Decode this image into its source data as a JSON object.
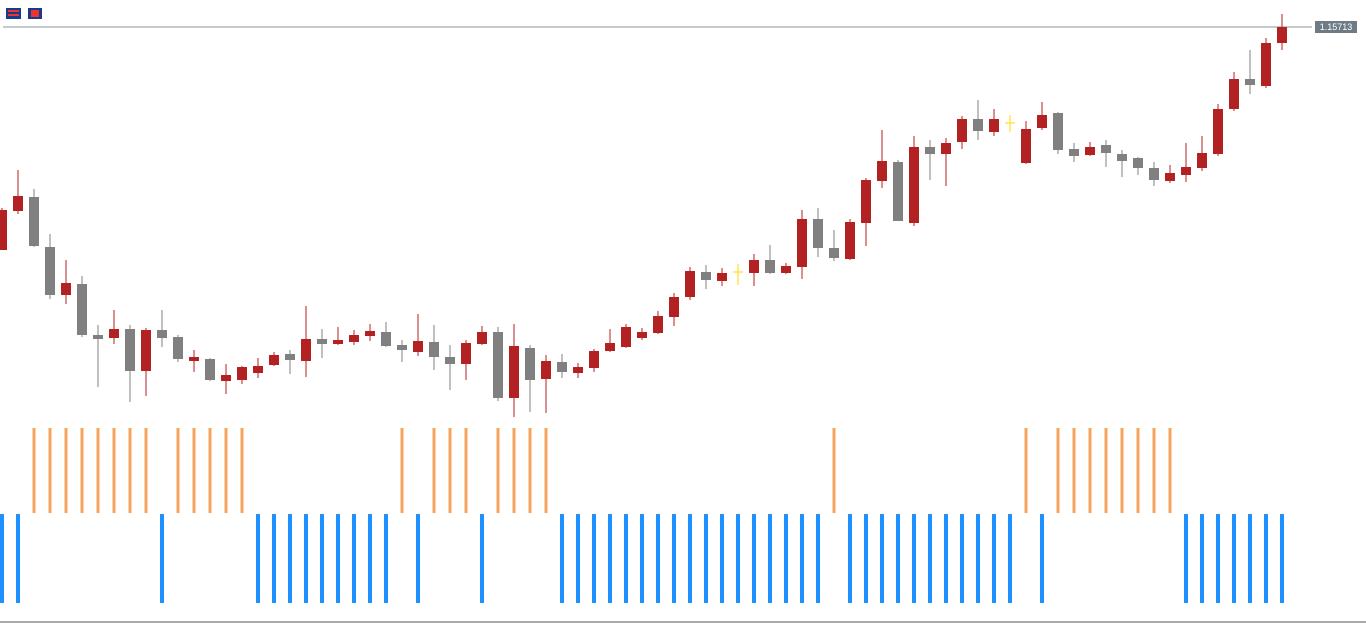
{
  "chart_data": {
    "type": "candlestick",
    "ylim": [
      1.1532,
      1.1574
    ],
    "up_color": "#b22222",
    "down_color": "#808080",
    "doji_color": "#ffd700",
    "last_price": 1.15713,
    "last_price_color": "#6e7b85",
    "open": [
      1.1549,
      1.15529,
      1.15543,
      1.15493,
      1.15445,
      1.15456,
      1.15405,
      1.15402,
      1.15411,
      1.15369,
      1.1541,
      1.15403,
      1.15379,
      1.15381,
      1.15359,
      1.1536,
      1.15367,
      1.15375,
      1.15386,
      1.15379,
      1.15401,
      1.15396,
      1.15398,
      1.15404,
      1.15408,
      1.15395,
      1.15388,
      1.15398,
      1.15383,
      1.15376,
      1.15396,
      1.15408,
      1.15342,
      1.15392,
      1.15361,
      1.15378,
      1.15367,
      1.15372,
      1.15389,
      1.15393,
      1.15402,
      1.15407,
      1.15423,
      1.15443,
      1.15468,
      1.15459,
      1.15468,
      1.15467,
      1.1548,
      1.15467,
      1.15473,
      1.15521,
      1.15492,
      1.15481,
      1.15517,
      1.15559,
      1.15578,
      1.15517,
      1.15593,
      1.15586,
      1.15598,
      1.15621,
      1.15608,
      1.15617,
      1.15577,
      1.15612,
      1.15627,
      1.15591,
      1.15585,
      1.15595,
      1.15586,
      1.15582,
      1.15572,
      1.15559,
      1.15565,
      1.15572,
      1.15586,
      1.15631,
      1.15661,
      1.15654,
      1.15697
    ],
    "high": [
      1.15532,
      1.1557,
      1.15551,
      1.15506,
      1.1548,
      1.15464,
      1.15415,
      1.1543,
      1.15415,
      1.15412,
      1.1543,
      1.15405,
      1.1539,
      1.15382,
      1.15376,
      1.15374,
      1.15382,
      1.15388,
      1.1539,
      1.15434,
      1.15411,
      1.15413,
      1.1541,
      1.15416,
      1.15418,
      1.154,
      1.15426,
      1.15415,
      1.15395,
      1.154,
      1.15414,
      1.15413,
      1.15416,
      1.15395,
      1.15385,
      1.15386,
      1.15377,
      1.15391,
      1.15411,
      1.15416,
      1.15412,
      1.15429,
      1.15447,
      1.15473,
      1.15475,
      1.15472,
      1.15476,
      1.15486,
      1.15495,
      1.15477,
      1.1553,
      1.15532,
      1.1551,
      1.15521,
      1.15562,
      1.1561,
      1.1558,
      1.15604,
      1.156,
      1.15602,
      1.15624,
      1.1564,
      1.15631,
      1.15625,
      1.15619,
      1.15638,
      1.15628,
      1.15597,
      1.15598,
      1.156,
      1.1559,
      1.15583,
      1.15578,
      1.15575,
      1.15597,
      1.15604,
      1.15636,
      1.15668,
      1.1569,
      1.15702,
      1.15726
    ],
    "low": [
      1.1549,
      1.15526,
      1.15493,
      1.15441,
      1.15436,
      1.15403,
      1.15353,
      1.15396,
      1.15338,
      1.15344,
      1.15393,
      1.15378,
      1.15368,
      1.15359,
      1.15346,
      1.15356,
      1.15362,
      1.15374,
      1.15366,
      1.15363,
      1.15382,
      1.15395,
      1.15395,
      1.15399,
      1.15393,
      1.15378,
      1.15384,
      1.1537,
      1.1535,
      1.1536,
      1.15395,
      1.15339,
      1.15323,
      1.15328,
      1.15327,
      1.15362,
      1.15362,
      1.15368,
      1.15388,
      1.15392,
      1.154,
      1.15406,
      1.15414,
      1.1544,
      1.15451,
      1.15454,
      1.15455,
      1.15454,
      1.15466,
      1.15466,
      1.15461,
      1.15483,
      1.15479,
      1.1548,
      1.15494,
      1.15552,
      1.15519,
      1.15514,
      1.1556,
      1.15554,
      1.15591,
      1.156,
      1.15604,
      1.15608,
      1.15576,
      1.1561,
      1.15586,
      1.15578,
      1.15584,
      1.15573,
      1.15563,
      1.15565,
      1.15554,
      1.15557,
      1.15558,
      1.15569,
      1.15584,
      1.15629,
      1.15646,
      1.15652,
      1.1569
    ],
    "close": [
      1.1553,
      1.15544,
      1.15494,
      1.15445,
      1.15457,
      1.15405,
      1.15401,
      1.15411,
      1.15369,
      1.1541,
      1.15402,
      1.15381,
      1.15383,
      1.1536,
      1.15365,
      1.15373,
      1.15374,
      1.15385,
      1.1538,
      1.15401,
      1.15396,
      1.154,
      1.15405,
      1.15409,
      1.15394,
      1.1539,
      1.15399,
      1.15383,
      1.15376,
      1.15397,
      1.15408,
      1.15342,
      1.15394,
      1.1536,
      1.15379,
      1.15368,
      1.15373,
      1.15389,
      1.15397,
      1.15413,
      1.15408,
      1.15424,
      1.15443,
      1.15469,
      1.1546,
      1.15467,
      1.15468,
      1.1548,
      1.15467,
      1.15474,
      1.15521,
      1.15492,
      1.15482,
      1.15518,
      1.1556,
      1.15579,
      1.15519,
      1.15593,
      1.15586,
      1.15597,
      1.15621,
      1.15609,
      1.15621,
      1.15617,
      1.15611,
      1.15625,
      1.1559,
      1.15584,
      1.15593,
      1.15587,
      1.15579,
      1.15572,
      1.1556,
      1.15567,
      1.15573,
      1.15587,
      1.15631,
      1.15661,
      1.15655,
      1.15697,
      1.15713
    ],
    "indicators": [
      {
        "color": "#f4a460",
        "values": [
          null,
          null,
          1,
          1,
          1,
          1,
          1,
          1,
          1,
          1,
          null,
          1,
          1,
          1,
          1,
          1,
          null,
          null,
          null,
          null,
          null,
          null,
          null,
          null,
          null,
          1,
          null,
          1,
          1,
          1,
          null,
          1,
          1,
          1,
          1,
          null,
          null,
          null,
          null,
          null,
          null,
          null,
          null,
          null,
          null,
          null,
          null,
          null,
          null,
          null,
          null,
          null,
          1,
          null,
          null,
          null,
          null,
          null,
          null,
          null,
          null,
          null,
          null,
          null,
          1,
          null,
          1,
          1,
          1,
          1,
          1,
          1,
          1,
          1,
          null,
          null,
          null,
          null,
          null,
          null,
          null
        ]
      },
      {
        "color": "#1e90ff",
        "values": [
          1,
          1,
          null,
          null,
          null,
          null,
          null,
          null,
          null,
          null,
          1,
          null,
          null,
          null,
          null,
          null,
          1,
          1,
          1,
          1,
          1,
          1,
          1,
          1,
          1,
          null,
          1,
          null,
          null,
          null,
          1,
          null,
          null,
          null,
          null,
          1,
          1,
          1,
          1,
          1,
          1,
          1,
          1,
          1,
          1,
          1,
          1,
          1,
          1,
          1,
          1,
          1,
          null,
          1,
          1,
          1,
          1,
          1,
          1,
          1,
          1,
          1,
          1,
          1,
          null,
          1,
          null,
          null,
          null,
          null,
          null,
          null,
          null,
          null,
          1,
          1,
          1,
          1,
          1,
          1,
          1
        ]
      }
    ]
  }
}
